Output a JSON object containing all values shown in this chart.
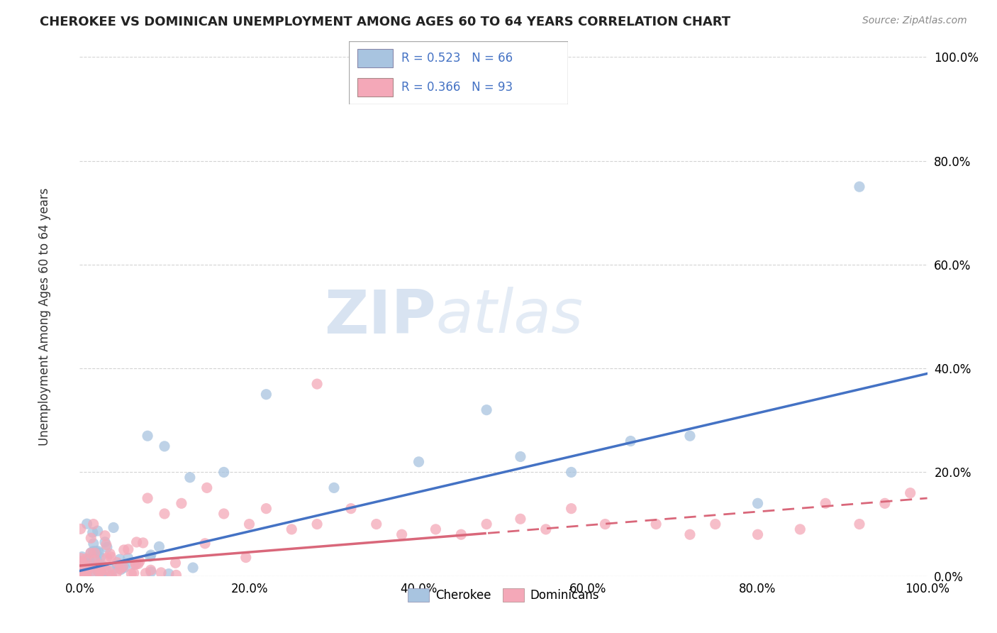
{
  "title": "CHEROKEE VS DOMINICAN UNEMPLOYMENT AMONG AGES 60 TO 64 YEARS CORRELATION CHART",
  "source": "Source: ZipAtlas.com",
  "xlim": [
    0,
    1.0
  ],
  "ylim": [
    0,
    1.0
  ],
  "cherokee_color": "#a8c4e0",
  "dominican_color": "#f4a8b8",
  "cherokee_line_color": "#4472c4",
  "dominican_line_color": "#d9677a",
  "cherokee_R": 0.523,
  "cherokee_N": 66,
  "dominican_R": 0.366,
  "dominican_N": 93,
  "cherokee_line_slope": 0.38,
  "cherokee_line_intercept": 0.01,
  "dominican_line_slope": 0.13,
  "dominican_line_intercept": 0.02
}
